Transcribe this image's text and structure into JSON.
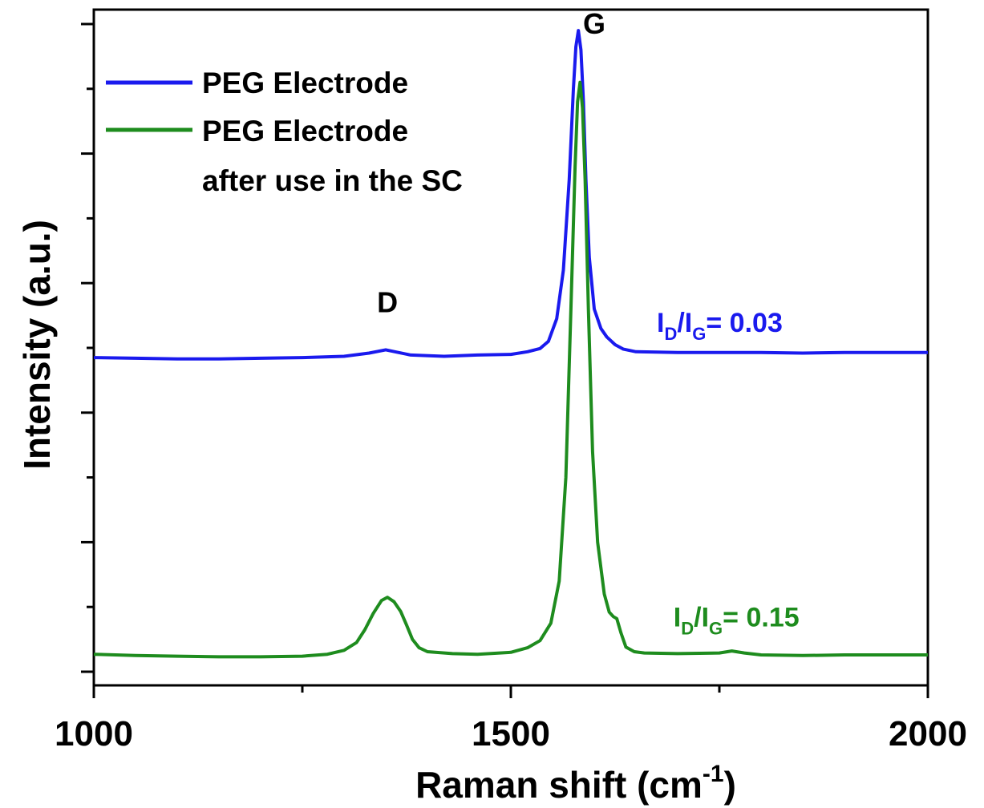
{
  "chart_data": {
    "type": "line",
    "title": "",
    "xlabel": "Raman shift (cm",
    "xlabel_sup": "-1",
    "xlabel_close": ")",
    "ylabel": "Intensity (a.u.)",
    "xlim": [
      1000,
      2000
    ],
    "ylim": [
      0,
      1
    ],
    "x_ticks": [
      "1000",
      "1500",
      "2000"
    ],
    "y_tick_labels_shown": false,
    "grid": false,
    "legend_position": "top-left",
    "series": [
      {
        "name": "PEG Electrode",
        "color": "#1a1aee",
        "points": [
          [
            1000,
            0.485
          ],
          [
            1050,
            0.484
          ],
          [
            1100,
            0.483
          ],
          [
            1150,
            0.483
          ],
          [
            1200,
            0.484
          ],
          [
            1250,
            0.485
          ],
          [
            1300,
            0.487
          ],
          [
            1330,
            0.492
          ],
          [
            1350,
            0.497
          ],
          [
            1365,
            0.493
          ],
          [
            1380,
            0.489
          ],
          [
            1420,
            0.487
          ],
          [
            1460,
            0.489
          ],
          [
            1500,
            0.49
          ],
          [
            1520,
            0.494
          ],
          [
            1535,
            0.499
          ],
          [
            1545,
            0.51
          ],
          [
            1555,
            0.545
          ],
          [
            1563,
            0.62
          ],
          [
            1570,
            0.76
          ],
          [
            1575,
            0.9
          ],
          [
            1578,
            0.965
          ],
          [
            1581,
            0.99
          ],
          [
            1584,
            0.96
          ],
          [
            1587,
            0.88
          ],
          [
            1590,
            0.76
          ],
          [
            1594,
            0.64
          ],
          [
            1600,
            0.56
          ],
          [
            1608,
            0.53
          ],
          [
            1615,
            0.517
          ],
          [
            1625,
            0.505
          ],
          [
            1635,
            0.498
          ],
          [
            1650,
            0.494
          ],
          [
            1700,
            0.493
          ],
          [
            1750,
            0.493
          ],
          [
            1800,
            0.493
          ],
          [
            1850,
            0.492
          ],
          [
            1900,
            0.493
          ],
          [
            1950,
            0.493
          ],
          [
            2000,
            0.493
          ]
        ]
      },
      {
        "name": "PEG Electrode after use in the SC",
        "legend_lines": [
          "PEG Electrode",
          "after use in the SC"
        ],
        "color": "#1e8c1e",
        "points": [
          [
            1000,
            0.027
          ],
          [
            1050,
            0.025
          ],
          [
            1100,
            0.024
          ],
          [
            1150,
            0.023
          ],
          [
            1200,
            0.023
          ],
          [
            1250,
            0.024
          ],
          [
            1280,
            0.027
          ],
          [
            1300,
            0.033
          ],
          [
            1315,
            0.045
          ],
          [
            1325,
            0.065
          ],
          [
            1335,
            0.09
          ],
          [
            1345,
            0.11
          ],
          [
            1352,
            0.115
          ],
          [
            1360,
            0.108
          ],
          [
            1368,
            0.093
          ],
          [
            1375,
            0.072
          ],
          [
            1382,
            0.05
          ],
          [
            1390,
            0.037
          ],
          [
            1400,
            0.031
          ],
          [
            1430,
            0.028
          ],
          [
            1460,
            0.027
          ],
          [
            1500,
            0.03
          ],
          [
            1520,
            0.037
          ],
          [
            1535,
            0.048
          ],
          [
            1548,
            0.075
          ],
          [
            1558,
            0.14
          ],
          [
            1566,
            0.3
          ],
          [
            1572,
            0.56
          ],
          [
            1577,
            0.78
          ],
          [
            1580,
            0.88
          ],
          [
            1583,
            0.91
          ],
          [
            1586,
            0.87
          ],
          [
            1589,
            0.76
          ],
          [
            1593,
            0.56
          ],
          [
            1598,
            0.34
          ],
          [
            1604,
            0.2
          ],
          [
            1612,
            0.12
          ],
          [
            1618,
            0.092
          ],
          [
            1623,
            0.085
          ],
          [
            1627,
            0.082
          ],
          [
            1632,
            0.06
          ],
          [
            1638,
            0.038
          ],
          [
            1648,
            0.031
          ],
          [
            1660,
            0.029
          ],
          [
            1700,
            0.028
          ],
          [
            1750,
            0.029
          ],
          [
            1765,
            0.032
          ],
          [
            1780,
            0.029
          ],
          [
            1800,
            0.026
          ],
          [
            1850,
            0.025
          ],
          [
            1900,
            0.026
          ],
          [
            1950,
            0.026
          ],
          [
            2000,
            0.026
          ]
        ]
      }
    ],
    "annotations": [
      {
        "text": "D",
        "x": 1352,
        "y": 0.555
      },
      {
        "text": "G",
        "x": 1600,
        "y": 0.985
      }
    ],
    "ratio_labels": [
      {
        "prefix": "I",
        "sub1": "D",
        "mid": "/I",
        "sub2": "G",
        "suffix": "= 0.03",
        "color": "#1a1aee",
        "x": 1675,
        "y": 0.525
      },
      {
        "prefix": "I",
        "sub1": "D",
        "mid": "/I",
        "sub2": "G",
        "suffix": "= 0.15",
        "color": "#1e8c1e",
        "x": 1695,
        "y": 0.07
      }
    ]
  }
}
